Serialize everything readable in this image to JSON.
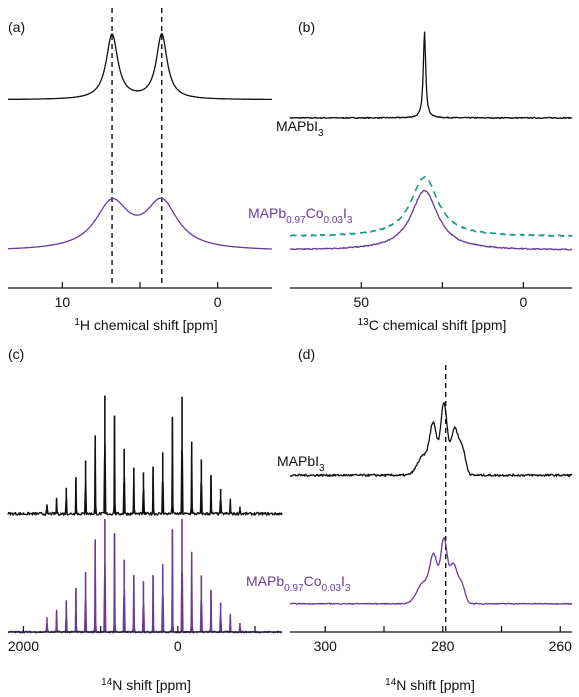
{
  "colors": {
    "black": "#111111",
    "purple": "#6a3c96",
    "teal": "#1a9a86"
  },
  "chart_data": [
    {
      "panel": "(a)",
      "type": "line",
      "xlabel": {
        "sup": "1",
        "text": "H chemical shift [ppm]"
      },
      "xlim": [
        13.5,
        -3.5
      ],
      "xticks": [
        {
          "value": 10,
          "label": "10"
        },
        {
          "value": 5,
          "label": ""
        },
        {
          "value": 0,
          "label": "0"
        }
      ],
      "reference_lines_x": [
        6.8,
        3.6
      ],
      "series": [
        {
          "shape": "lorentzian",
          "color": "black",
          "offset": 0.93,
          "scale": 0.24,
          "baseline": 0.03,
          "peaks": [
            {
              "x": 6.8,
              "height": 1.0,
              "width": 0.45
            },
            {
              "x": 3.6,
              "height": 1.0,
              "width": 0.42
            }
          ]
        },
        {
          "shape": "lorentzian",
          "color": "purple",
          "offset": 0.35,
          "scale": 0.22,
          "baseline": 0.03,
          "peaks": [
            {
              "x": 6.8,
              "height": 0.78,
              "width": 1.3
            },
            {
              "x": 3.6,
              "height": 0.78,
              "width": 1.25
            }
          ]
        }
      ]
    },
    {
      "panel": "(b)",
      "type": "line",
      "xlabel": {
        "sup": "13",
        "text": "C chemical shift [ppm]"
      },
      "xlim": [
        72,
        -15
      ],
      "xticks": [
        {
          "value": 50,
          "label": "50"
        },
        {
          "value": 25,
          "label": ""
        },
        {
          "value": 0,
          "label": "0"
        }
      ],
      "reference_lines_x": [],
      "series": [
        {
          "shape": "lorentzian",
          "color": "black",
          "offset": 0.95,
          "scale": 0.32,
          "baseline": 0.0,
          "noise": 0.006,
          "peaks": [
            {
              "x": 30.5,
              "height": 1.0,
              "width": 0.45
            }
          ]
        },
        {
          "shape": "lorentzian",
          "color": "purple",
          "offset": 0.4,
          "scale": 0.26,
          "baseline": 0.0,
          "noise": 0.008,
          "peaks": [
            {
              "x": 30.5,
              "height": 0.85,
              "width": 5.0
            }
          ]
        },
        {
          "shape": "lorentzian",
          "color": "teal",
          "dashed": true,
          "offset": 0.44,
          "scale": 0.26,
          "baseline": 0.04,
          "noise": 0.008,
          "peaks": [
            {
              "x": 30.5,
              "height": 0.85,
              "width": 5.0
            }
          ]
        }
      ]
    },
    {
      "panel": "(c)",
      "type": "line",
      "xlabel": {
        "sup": "14",
        "text": "N shift [ppm]"
      },
      "xlim": [
        2200,
        -1350
      ],
      "xticks": [
        {
          "value": 2000,
          "label": "2000"
        },
        {
          "value": 1000,
          "label": ""
        },
        {
          "value": 0,
          "label": "0"
        },
        {
          "value": -1000,
          "label": ""
        }
      ],
      "reference_lines_x": [],
      "series": [
        {
          "shape": "sticks",
          "color": "black",
          "offset": 0.92,
          "scale": 0.46,
          "baseline": 0.0,
          "noise": 0.012,
          "peaks": [
            {
              "x": 1695,
              "height": 0.08
            },
            {
              "x": 1570,
              "height": 0.13
            },
            {
              "x": 1445,
              "height": 0.22
            },
            {
              "x": 1320,
              "height": 0.31
            },
            {
              "x": 1195,
              "height": 0.45
            },
            {
              "x": 1070,
              "height": 0.66
            },
            {
              "x": 945,
              "height": 1.0
            },
            {
              "x": 820,
              "height": 0.83
            },
            {
              "x": 695,
              "height": 0.55
            },
            {
              "x": 570,
              "height": 0.39
            },
            {
              "x": 445,
              "height": 0.35
            },
            {
              "x": 320,
              "height": 0.4
            },
            {
              "x": 195,
              "height": 0.52
            },
            {
              "x": 70,
              "height": 0.82
            },
            {
              "x": -55,
              "height": 0.99
            },
            {
              "x": -180,
              "height": 0.61
            },
            {
              "x": -305,
              "height": 0.46
            },
            {
              "x": -430,
              "height": 0.32
            },
            {
              "x": -555,
              "height": 0.21
            },
            {
              "x": -680,
              "height": 0.12
            },
            {
              "x": -805,
              "height": 0.06
            }
          ]
        },
        {
          "shape": "sticks",
          "color": "purple",
          "offset": 0.44,
          "scale": 0.44,
          "baseline": 0.0,
          "noise": 0.008,
          "peaks": [
            {
              "x": 1695,
              "height": 0.13
            },
            {
              "x": 1570,
              "height": 0.19
            },
            {
              "x": 1445,
              "height": 0.28
            },
            {
              "x": 1320,
              "height": 0.39
            },
            {
              "x": 1195,
              "height": 0.53
            },
            {
              "x": 1070,
              "height": 0.82
            },
            {
              "x": 945,
              "height": 1.0
            },
            {
              "x": 820,
              "height": 0.87
            },
            {
              "x": 695,
              "height": 0.64
            },
            {
              "x": 570,
              "height": 0.5
            },
            {
              "x": 445,
              "height": 0.45
            },
            {
              "x": 320,
              "height": 0.5
            },
            {
              "x": 195,
              "height": 0.6
            },
            {
              "x": 70,
              "height": 0.9
            },
            {
              "x": -55,
              "height": 1.0
            },
            {
              "x": -180,
              "height": 0.7
            },
            {
              "x": -305,
              "height": 0.5
            },
            {
              "x": -430,
              "height": 0.37
            },
            {
              "x": -555,
              "height": 0.26
            },
            {
              "x": -680,
              "height": 0.15
            },
            {
              "x": -805,
              "height": 0.08
            }
          ]
        }
      ]
    },
    {
      "panel": "(d)",
      "type": "line",
      "xlabel": {
        "sup": "14",
        "text": "N shift [ppm]"
      },
      "xlim": [
        306,
        258
      ],
      "xticks": [
        {
          "value": 300,
          "label": "300"
        },
        {
          "value": 290,
          "label": ""
        },
        {
          "value": 280,
          "label": "280"
        },
        {
          "value": 270,
          "label": ""
        },
        {
          "value": 260,
          "label": "260"
        }
      ],
      "reference_lines_x": [
        279.5
      ],
      "series": [
        {
          "shape": "gaussian",
          "color": "black",
          "offset": 0.95,
          "scale": 0.34,
          "baseline": 0.0,
          "noise": 0.012,
          "peaks": [
            {
              "x": 281.6,
              "height": 0.55,
              "width": 0.85
            },
            {
              "x": 279.8,
              "height": 0.82,
              "width": 0.8
            },
            {
              "x": 278.0,
              "height": 0.52,
              "width": 0.85
            },
            {
              "x": 276.7,
              "height": 0.3,
              "width": 0.8
            },
            {
              "x": 283.3,
              "height": 0.22,
              "width": 1.4
            }
          ]
        },
        {
          "shape": "gaussian",
          "color": "purple",
          "offset": 0.41,
          "scale": 0.3,
          "baseline": 0.0,
          "noise": 0.006,
          "peaks": [
            {
              "x": 281.5,
              "height": 0.55,
              "width": 0.9
            },
            {
              "x": 279.8,
              "height": 0.82,
              "width": 0.8
            },
            {
              "x": 278.2,
              "height": 0.5,
              "width": 0.9
            },
            {
              "x": 276.8,
              "height": 0.25,
              "width": 0.8
            },
            {
              "x": 283.2,
              "height": 0.28,
              "width": 1.6
            }
          ]
        }
      ]
    }
  ],
  "labels": {
    "a": {
      "text": "(a)"
    },
    "b": {
      "text": "(b)",
      "black_series": {
        "main": "MAPbI",
        "sub": "3"
      },
      "purple_series": {
        "p1": "MAPb",
        "s1": "0.97",
        "p2": "Co",
        "s2": "0.03",
        "p3": "I",
        "s3": "3"
      }
    },
    "c": {
      "text": "(c)"
    },
    "d": {
      "text": "(d)",
      "black_series": {
        "main": "MAPbI",
        "sub": "3"
      },
      "purple_series": {
        "p1": "MAPb",
        "s1": "0.97",
        "p2": "Co",
        "s2": "0.03",
        "p3": "I",
        "s3": "3"
      }
    }
  }
}
